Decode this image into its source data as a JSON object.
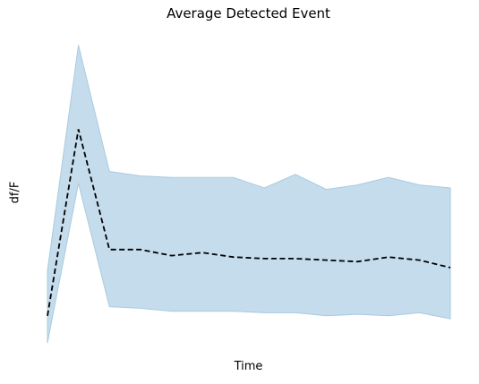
{
  "chart_data": {
    "type": "line",
    "title": "Average Detected Event",
    "xlabel": "Time",
    "ylabel": "df/F",
    "axes_visible": false,
    "grid": false,
    "x": [
      0,
      1,
      2,
      3,
      4,
      5,
      6,
      7,
      8,
      9,
      10,
      11,
      12,
      13
    ],
    "ylim": [
      0,
      1
    ],
    "series": [
      {
        "style": "dashed",
        "color": "#000000",
        "values": [
          0.09,
          0.71,
          0.31,
          0.31,
          0.29,
          0.3,
          0.285,
          0.28,
          0.28,
          0.275,
          0.27,
          0.285,
          0.275,
          0.25
        ]
      }
    ],
    "band": {
      "color": "#c5dcec",
      "edge_color": "#a9cbe0",
      "upper": [
        0.24,
        0.99,
        0.57,
        0.555,
        0.55,
        0.55,
        0.55,
        0.515,
        0.56,
        0.51,
        0.525,
        0.55,
        0.525,
        0.515
      ],
      "lower": [
        0.0,
        0.53,
        0.12,
        0.115,
        0.105,
        0.105,
        0.105,
        0.1,
        0.1,
        0.09,
        0.095,
        0.09,
        0.1,
        0.08
      ]
    }
  }
}
